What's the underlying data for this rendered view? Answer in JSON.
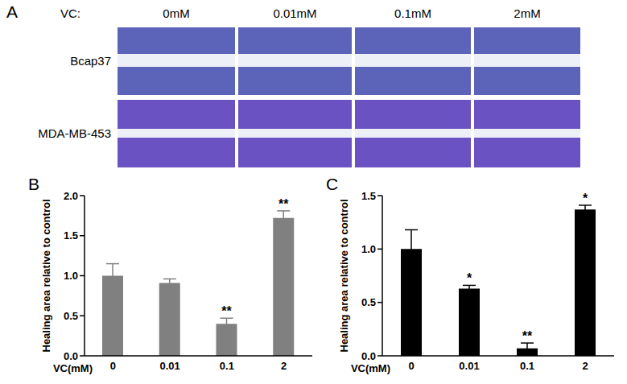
{
  "panel_a": {
    "label": "A",
    "treatment_label": "VC:",
    "columns": [
      "0mM",
      "0.01mM",
      "0.1mM",
      "2mM"
    ],
    "rows": [
      "Bcap37",
      "MDA-MB-453"
    ]
  },
  "chart_data": [
    {
      "type": "bar",
      "panel": "B",
      "y_label": "Healing area relative to control",
      "x_label": "VC(mM)",
      "categories": [
        "0",
        "0.01",
        "0.1",
        "2"
      ],
      "values": [
        1.0,
        0.91,
        0.4,
        1.72
      ],
      "errors": [
        0.15,
        0.05,
        0.07,
        0.09
      ],
      "significance": [
        null,
        null,
        "**",
        "**"
      ],
      "color": "#808080",
      "ylim": [
        0,
        2
      ],
      "yticks": [
        {
          "value": 0,
          "label": "0.0"
        },
        {
          "value": 0.5,
          "label": "0.5"
        },
        {
          "value": 1,
          "label": "1.0"
        },
        {
          "value": 1.5,
          "label": "1.5"
        },
        {
          "value": 2,
          "label": "2.0"
        }
      ]
    },
    {
      "type": "bar",
      "panel": "C",
      "y_label": "Healing area relative to control",
      "x_label": "VC(mM)",
      "categories": [
        "0",
        "0.01",
        "0.1",
        "2"
      ],
      "values": [
        1.0,
        0.63,
        0.07,
        1.37
      ],
      "errors": [
        0.18,
        0.03,
        0.05,
        0.04
      ],
      "significance": [
        null,
        "*",
        "**",
        "*"
      ],
      "color": "#000000",
      "ylim": [
        0,
        1.5
      ],
      "yticks": [
        {
          "value": 0,
          "label": "0.0"
        },
        {
          "value": 0.5,
          "label": "0.5"
        },
        {
          "value": 1,
          "label": "1.0"
        },
        {
          "value": 1.5,
          "label": "1.5"
        }
      ]
    }
  ]
}
